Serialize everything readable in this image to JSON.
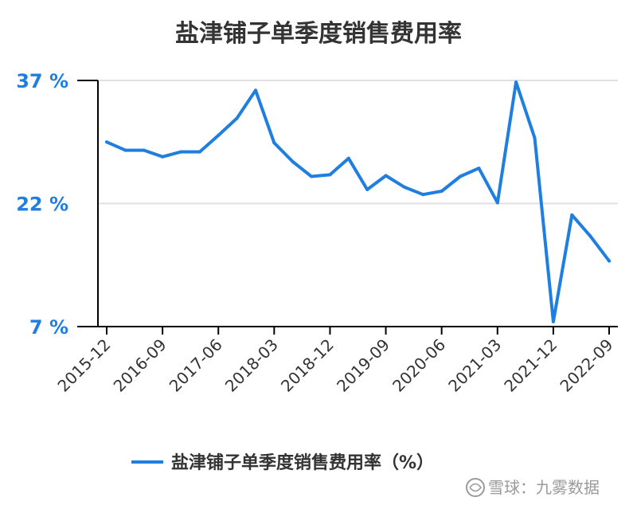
{
  "title": "盐津铺子单季度销售费用率",
  "colors": {
    "series": "#1f7fe0",
    "ytick": "#1f7fe0",
    "grid": "#e0e0e0",
    "axis": "#000000",
    "title": "#333333"
  },
  "watermark": {
    "icon": "snowball-logo-icon",
    "text": "雪球：九雾数据"
  },
  "chart_data": {
    "type": "line",
    "title": "盐津铺子单季度销售费用率",
    "xlabel": "",
    "ylabel": "",
    "ylim": [
      7,
      37
    ],
    "y_ticks": [
      37,
      22,
      7
    ],
    "y_tick_labels": [
      "37 %",
      "22 %",
      "7 %"
    ],
    "x": [
      "2015-12",
      "2016-03",
      "2016-06",
      "2016-09",
      "2016-12",
      "2017-03",
      "2017-06",
      "2017-09",
      "2017-12",
      "2018-03",
      "2018-06",
      "2018-09",
      "2018-12",
      "2019-03",
      "2019-06",
      "2019-09",
      "2019-12",
      "2020-03",
      "2020-06",
      "2020-09",
      "2020-12",
      "2021-03",
      "2021-06",
      "2021-09",
      "2021-12",
      "2022-03",
      "2022-06",
      "2022-09"
    ],
    "x_tick_labels": [
      "2015-12",
      "2016-09",
      "2017-06",
      "2018-03",
      "2018-12",
      "2019-09",
      "2020-06",
      "2021-03",
      "2021-12",
      "2022-09"
    ],
    "grid": true,
    "legend_position": "bottom",
    "series": [
      {
        "name": "盐津铺子单季度销售费用率（%）",
        "values": [
          29.5,
          28.5,
          28.5,
          27.7,
          28.3,
          28.3,
          30.3,
          32.4,
          35.8,
          29.4,
          27.1,
          25.3,
          25.5,
          27.5,
          23.7,
          25.4,
          24.0,
          23.1,
          23.5,
          25.3,
          26.3,
          22.1,
          36.8,
          30.0,
          7.6,
          20.6,
          18.0,
          15.0
        ]
      }
    ]
  }
}
